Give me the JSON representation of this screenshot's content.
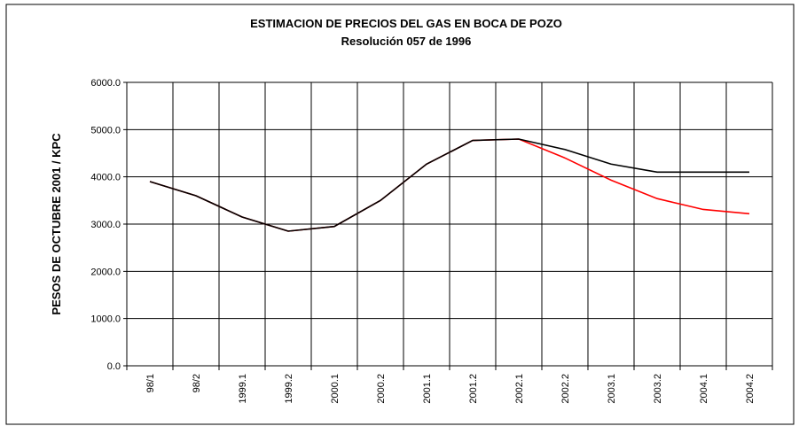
{
  "chart_data": {
    "type": "line",
    "title": "ESTIMACION DE PRECIOS DEL GAS EN BOCA DE POZO",
    "subtitle": "Resolución 057 de 1996",
    "y_label": "PESOS DE OCTUBRE 2001 / KPC",
    "categories": [
      "98/1",
      "98/2",
      "1999.1",
      "1999.2",
      "2000.1",
      "2000.2",
      "2001.1",
      "2001.2",
      "2002.1",
      "2002.2",
      "2003.1",
      "2003.2",
      "2004.1",
      "2004.2"
    ],
    "series": [
      {
        "color": "#ff0000",
        "values": [
          3900,
          3600,
          3150,
          2850,
          2950,
          3500,
          4270,
          4770,
          4800,
          4400,
          3930,
          3540,
          3310,
          3220
        ]
      },
      {
        "color": "#000000",
        "values": [
          3900,
          3600,
          3150,
          2850,
          2950,
          3500,
          4270,
          4770,
          4800,
          4580,
          4270,
          4100,
          4100,
          4100
        ]
      }
    ],
    "ylim": [
      0,
      6000
    ],
    "yticks": [
      {
        "value": 0,
        "label": "0.0"
      },
      {
        "value": 1000,
        "label": "1000.0"
      },
      {
        "value": 2000,
        "label": "2000.0"
      },
      {
        "value": 3000,
        "label": "3000.0"
      },
      {
        "value": 4000,
        "label": "4000.0"
      },
      {
        "value": 5000,
        "label": "5000.0"
      },
      {
        "value": 6000,
        "label": "6000.0"
      }
    ],
    "grid": true
  }
}
